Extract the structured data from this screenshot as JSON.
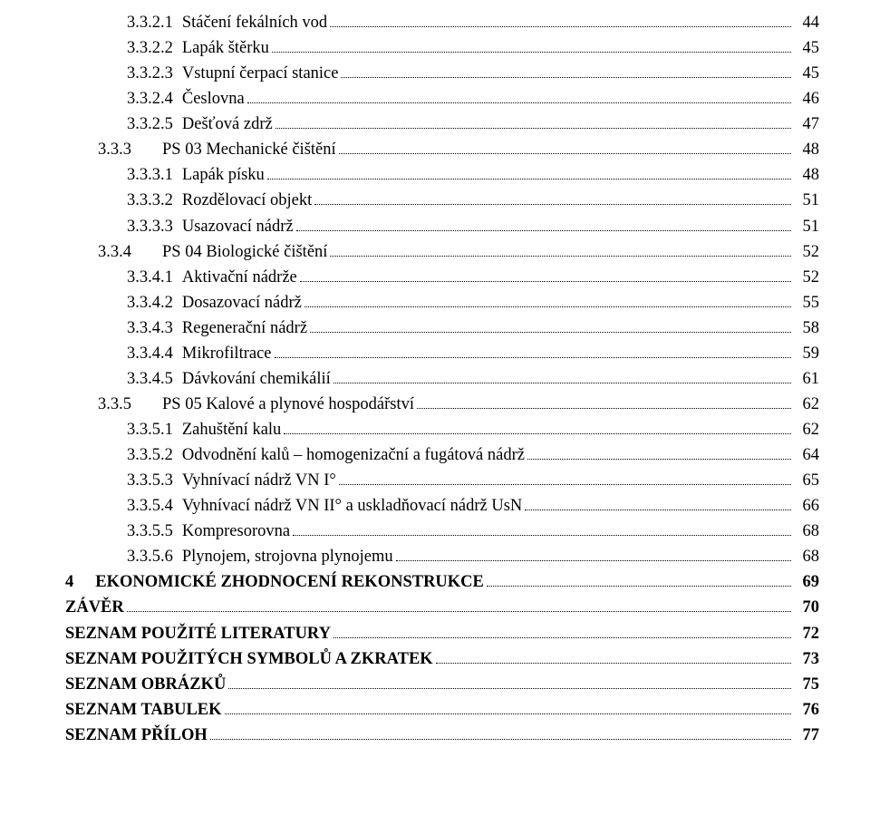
{
  "font_family": "Times New Roman",
  "base_font_size_pt": 14,
  "text_color": "#000000",
  "background_color": "#ffffff",
  "dot_leader_color": "#000000",
  "entries": [
    {
      "num": "3.3.2.1",
      "label": "Stáčení fekálních vod",
      "page": "44",
      "level": 3,
      "bold": false
    },
    {
      "num": "3.3.2.2",
      "label": "Lapák štěrku",
      "page": "45",
      "level": 3,
      "bold": false
    },
    {
      "num": "3.3.2.3",
      "label": "Vstupní čerpací stanice",
      "page": "45",
      "level": 3,
      "bold": false
    },
    {
      "num": "3.3.2.4",
      "label": "Česlovna",
      "page": "46",
      "level": 3,
      "bold": false
    },
    {
      "num": "3.3.2.5",
      "label": "Dešťová zdrž",
      "page": "47",
      "level": 3,
      "bold": false
    },
    {
      "num": "3.3.3",
      "label": "PS 03 Mechanické čištění",
      "page": "48",
      "level": 2,
      "bold": false,
      "gap": "wide"
    },
    {
      "num": "3.3.3.1",
      "label": "Lapák písku",
      "page": "48",
      "level": 3,
      "bold": false
    },
    {
      "num": "3.3.3.2",
      "label": "Rozdělovací objekt",
      "page": "51",
      "level": 3,
      "bold": false
    },
    {
      "num": "3.3.3.3",
      "label": "Usazovací nádrž",
      "page": "51",
      "level": 3,
      "bold": false
    },
    {
      "num": "3.3.4",
      "label": "PS 04 Biologické čištění",
      "page": "52",
      "level": 2,
      "bold": false,
      "gap": "wide"
    },
    {
      "num": "3.3.4.1",
      "label": "Aktivační nádrže",
      "page": "52",
      "level": 3,
      "bold": false
    },
    {
      "num": "3.3.4.2",
      "label": "Dosazovací nádrž",
      "page": "55",
      "level": 3,
      "bold": false
    },
    {
      "num": "3.3.4.3",
      "label": "Regenerační nádrž",
      "page": "58",
      "level": 3,
      "bold": false
    },
    {
      "num": "3.3.4.4",
      "label": "Mikrofiltrace",
      "page": "59",
      "level": 3,
      "bold": false
    },
    {
      "num": "3.3.4.5",
      "label": "Dávkování chemikálií",
      "page": "61",
      "level": 3,
      "bold": false
    },
    {
      "num": "3.3.5",
      "label": "PS 05 Kalové a plynové hospodářství",
      "page": "62",
      "level": 2,
      "bold": false,
      "gap": "wide"
    },
    {
      "num": "3.3.5.1",
      "label": "Zahuštění kalu",
      "page": "62",
      "level": 3,
      "bold": false
    },
    {
      "num": "3.3.5.2",
      "label": "Odvodnění kalů – homogenizační a fugátová nádrž",
      "page": "64",
      "level": 3,
      "bold": false
    },
    {
      "num": "3.3.5.3",
      "label": "Vyhnívací nádrž VN I°",
      "page": "65",
      "level": 3,
      "bold": false
    },
    {
      "num": "3.3.5.4",
      "label": "Vyhnívací nádrž VN II° a uskladňovací nádrž UsN",
      "page": "66",
      "level": 3,
      "bold": false
    },
    {
      "num": "3.3.5.5",
      "label": "Kompresorovna",
      "page": "68",
      "level": 3,
      "bold": false
    },
    {
      "num": "3.3.5.6",
      "label": "Plynojem, strojovna plynojemu",
      "page": "68",
      "level": 3,
      "bold": false
    },
    {
      "num": "4",
      "label": "EKONOMICKÉ ZHODNOCENÍ REKONSTRUKCE",
      "page": "69",
      "level": 1,
      "bold": true,
      "gap": "med"
    },
    {
      "num": "",
      "label": "ZÁVĚR",
      "page": "70",
      "level": 0,
      "bold": true
    },
    {
      "num": "",
      "label": "SEZNAM POUŽITÉ LITERATURY",
      "page": "72",
      "level": 0,
      "bold": true
    },
    {
      "num": "",
      "label": "SEZNAM POUŽITÝCH SYMBOLŮ A ZKRATEK",
      "page": "73",
      "level": 0,
      "bold": true
    },
    {
      "num": "",
      "label": "SEZNAM OBRÁZKŮ",
      "page": "75",
      "level": 0,
      "bold": true
    },
    {
      "num": "",
      "label": "SEZNAM TABULEK",
      "page": "76",
      "level": 0,
      "bold": true
    },
    {
      "num": "",
      "label": "SEZNAM PŘÍLOH",
      "page": "77",
      "level": 0,
      "bold": true
    }
  ]
}
